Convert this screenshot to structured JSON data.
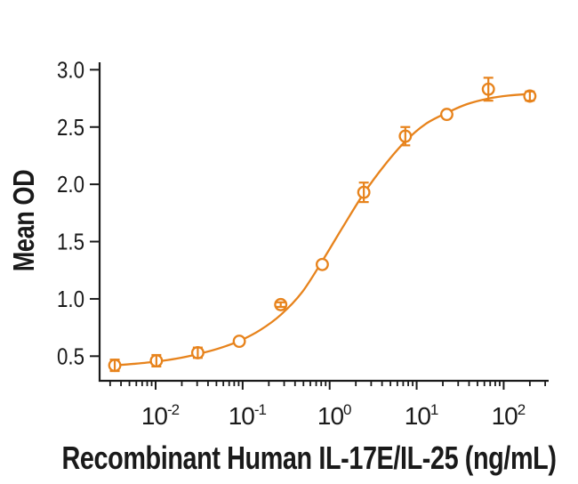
{
  "chart_data": {
    "type": "scatter",
    "subtype": "dose-response-curve-with-fit",
    "title": "",
    "xlabel": "Recombinant Human IL-17E/IL-25 (ng/mL)",
    "ylabel": "Mean OD",
    "x_scale": "log10",
    "x_range_log10": [
      -2.644,
      2.517
    ],
    "ylim": [
      0.285,
      3.065
    ],
    "grid": false,
    "legend": "none",
    "colors": {
      "series": "#E7831C",
      "axis": "#1a1a1a",
      "text": "#1a1a1a",
      "marker_fill": "#ffffff",
      "background": "#ffffff"
    },
    "y_ticks": [
      {
        "value": 0.5,
        "label": "0.5"
      },
      {
        "value": 1.0,
        "label": "1.0"
      },
      {
        "value": 1.5,
        "label": "1.5"
      },
      {
        "value": 2.0,
        "label": "2.0"
      },
      {
        "value": 2.5,
        "label": "2.5"
      },
      {
        "value": 3.0,
        "label": "3.0"
      }
    ],
    "x_major_ticks": [
      {
        "exponent": -2,
        "label_base": "10",
        "label_exp": "-2"
      },
      {
        "exponent": -1,
        "label_base": "10",
        "label_exp": "-1"
      },
      {
        "exponent": 0,
        "label_base": "10",
        "label_exp": "0"
      },
      {
        "exponent": 1,
        "label_base": "10",
        "label_exp": "1"
      },
      {
        "exponent": 2,
        "label_base": "10",
        "label_exp": "2"
      }
    ],
    "x_minor_ticks_per_decade": [
      2,
      3,
      4,
      5,
      6,
      7,
      8,
      9
    ],
    "series": [
      {
        "name": "Mean OD",
        "marker": "open-circle",
        "points": [
          {
            "x": 0.00339,
            "od": 0.42,
            "err": 0.05
          },
          {
            "x": 0.0102,
            "od": 0.46,
            "err": 0.05
          },
          {
            "x": 0.0305,
            "od": 0.53,
            "err": 0.045
          },
          {
            "x": 0.0915,
            "od": 0.63,
            "err": 0
          },
          {
            "x": 0.274,
            "od": 0.95,
            "err": 0.02
          },
          {
            "x": 0.823,
            "od": 1.3,
            "err": 0
          },
          {
            "x": 2.47,
            "od": 1.93,
            "err": 0.085
          },
          {
            "x": 7.41,
            "od": 2.42,
            "err": 0.08
          },
          {
            "x": 22.2,
            "od": 2.61,
            "err": 0
          },
          {
            "x": 66.7,
            "od": 2.83,
            "err": 0.1
          },
          {
            "x": 200,
            "od": 2.77,
            "err": 0.04
          }
        ]
      }
    ],
    "fit_curve": {
      "samples": [
        {
          "log10x": -2.47,
          "od": 0.42
        },
        {
          "log10x": -2.25,
          "od": 0.433
        },
        {
          "log10x": -2.0,
          "od": 0.452
        },
        {
          "log10x": -1.75,
          "od": 0.48
        },
        {
          "log10x": -1.52,
          "od": 0.517
        },
        {
          "log10x": -1.28,
          "od": 0.566
        },
        {
          "log10x": -1.04,
          "od": 0.632
        },
        {
          "log10x": -0.8,
          "od": 0.727
        },
        {
          "log10x": -0.56,
          "od": 0.862
        },
        {
          "log10x": -0.32,
          "od": 1.055
        },
        {
          "log10x": -0.085,
          "od": 1.33
        },
        {
          "log10x": 0.15,
          "od": 1.625
        },
        {
          "log10x": 0.392,
          "od": 1.92
        },
        {
          "log10x": 0.63,
          "od": 2.165
        },
        {
          "log10x": 0.87,
          "od": 2.375
        },
        {
          "log10x": 1.1,
          "od": 2.525
        },
        {
          "log10x": 1.35,
          "od": 2.625
        },
        {
          "log10x": 1.58,
          "od": 2.7
        },
        {
          "log10x": 1.82,
          "od": 2.748
        },
        {
          "log10x": 2.06,
          "od": 2.775
        },
        {
          "log10x": 2.301,
          "od": 2.788
        }
      ]
    }
  }
}
